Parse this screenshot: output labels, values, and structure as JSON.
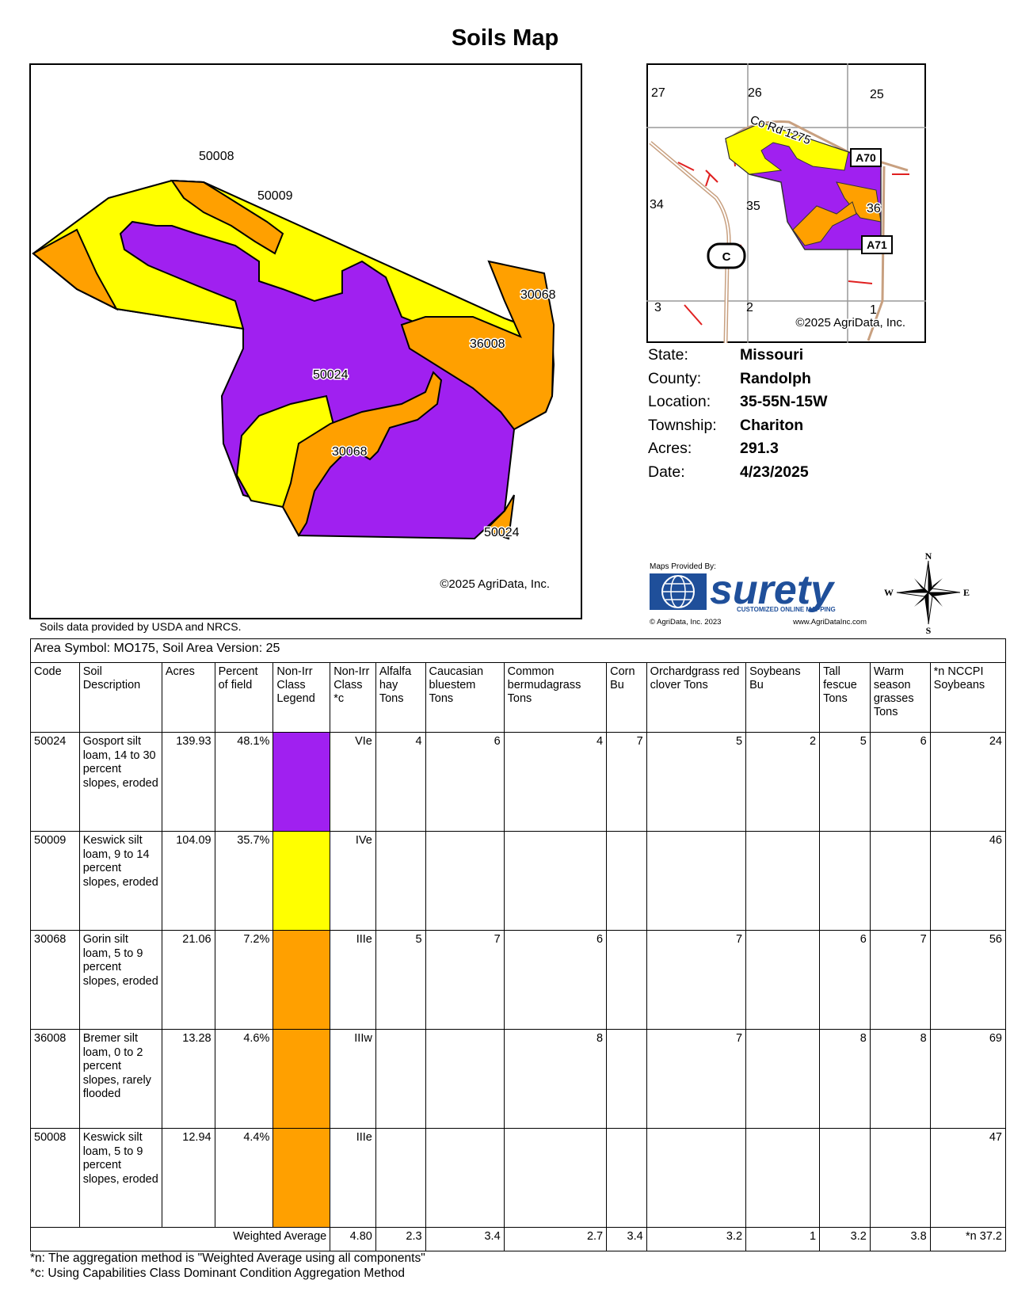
{
  "title": "Soils Map",
  "main_map": {
    "labels": [
      "50008",
      "50009",
      "50024",
      "36008",
      "30068",
      "30068",
      "50024"
    ],
    "copyright": "©2025 AgriData, Inc."
  },
  "source_note": "Soils data provided by USDA and NRCS.",
  "inset_map": {
    "sections": [
      "27",
      "26",
      "25",
      "34",
      "35",
      "36",
      "3",
      "2",
      "1"
    ],
    "road_label": "Co Rd 1275",
    "shields": [
      "A70",
      "A71",
      "C"
    ],
    "copyright": "©2025 AgriData, Inc."
  },
  "info": [
    {
      "key": "State:",
      "value": "Missouri"
    },
    {
      "key": "County:",
      "value": "Randolph"
    },
    {
      "key": "Location:",
      "value": "35-55N-15W"
    },
    {
      "key": "Township:",
      "value": "Chariton"
    },
    {
      "key": "Acres:",
      "value": "291.3"
    },
    {
      "key": "Date:",
      "value": "4/23/2025"
    }
  ],
  "branding": {
    "provided_by": "Maps Provided By:",
    "name": "surety",
    "tagline": "CUSTOMIZED ONLINE MAPPING",
    "copyright": "© AgriData, Inc. 2023",
    "website": "www.AgriDataInc.com"
  },
  "compass": {
    "n": "N",
    "s": "S",
    "e": "E",
    "w": "W"
  },
  "colors": {
    "purple": "#a020f0",
    "yellow": "#ffff00",
    "orange": "#ffa000"
  },
  "table": {
    "area_symbol": "Area Symbol: MO175, Soil Area Version: 25",
    "headers": [
      "Code",
      "Soil Description",
      "Acres",
      "Percent of field",
      "Non-Irr Class Legend",
      "Non-Irr Class *c",
      "Alfalfa hay Tons",
      "Caucasian bluestem Tons",
      "Common bermudagrass Tons",
      "Corn Bu",
      "Orchardgrass red clover Tons",
      "Soybeans Bu",
      "Tall fescue Tons",
      "Warm season grasses Tons",
      "*n NCCPI Soybeans"
    ],
    "rows": [
      {
        "code": "50024",
        "desc": "Gosport silt loam, 14 to 30 percent slopes, eroded",
        "acres": "139.93",
        "pct": "48.1%",
        "color": "#a020f0",
        "cls": "VIe",
        "alfalfa": "4",
        "caucasian": "6",
        "bermuda": "4",
        "corn": "7",
        "orchard": "5",
        "soy": "2",
        "fescue": "5",
        "warm": "6",
        "nccpi": "24"
      },
      {
        "code": "50009",
        "desc": "Keswick silt loam, 9 to 14 percent slopes, eroded",
        "acres": "104.09",
        "pct": "35.7%",
        "color": "#ffff00",
        "cls": "IVe",
        "alfalfa": "",
        "caucasian": "",
        "bermuda": "",
        "corn": "",
        "orchard": "",
        "soy": "",
        "fescue": "",
        "warm": "",
        "nccpi": "46"
      },
      {
        "code": "30068",
        "desc": "Gorin silt loam, 5 to 9 percent slopes, eroded",
        "acres": "21.06",
        "pct": "7.2%",
        "color": "#ffa000",
        "cls": "IIIe",
        "alfalfa": "5",
        "caucasian": "7",
        "bermuda": "6",
        "corn": "",
        "orchard": "7",
        "soy": "",
        "fescue": "6",
        "warm": "7",
        "nccpi": "56"
      },
      {
        "code": "36008",
        "desc": "Bremer silt loam, 0 to 2 percent slopes, rarely flooded",
        "acres": "13.28",
        "pct": "4.6%",
        "color": "#ffa000",
        "cls": "IIIw",
        "alfalfa": "",
        "caucasian": "",
        "bermuda": "8",
        "corn": "",
        "orchard": "7",
        "soy": "",
        "fescue": "8",
        "warm": "8",
        "nccpi": "69"
      },
      {
        "code": "50008",
        "desc": "Keswick silt loam, 5 to 9 percent slopes, eroded",
        "acres": "12.94",
        "pct": "4.4%",
        "color": "#ffa000",
        "cls": "IIIe",
        "alfalfa": "",
        "caucasian": "",
        "bermuda": "",
        "corn": "",
        "orchard": "",
        "soy": "",
        "fescue": "",
        "warm": "",
        "nccpi": "47"
      }
    ],
    "weighted": {
      "label": "Weighted Average",
      "cls": "4.80",
      "alfalfa": "2.3",
      "caucasian": "3.4",
      "bermuda": "2.7",
      "corn": "3.4",
      "orchard": "3.2",
      "soy": "1",
      "fescue": "3.2",
      "warm": "3.8",
      "nccpi": "*n 37.2"
    }
  },
  "footnotes": [
    "*n: The aggregation method is \"Weighted Average using all components\"",
    "*c: Using Capabilities Class Dominant Condition Aggregation Method"
  ]
}
